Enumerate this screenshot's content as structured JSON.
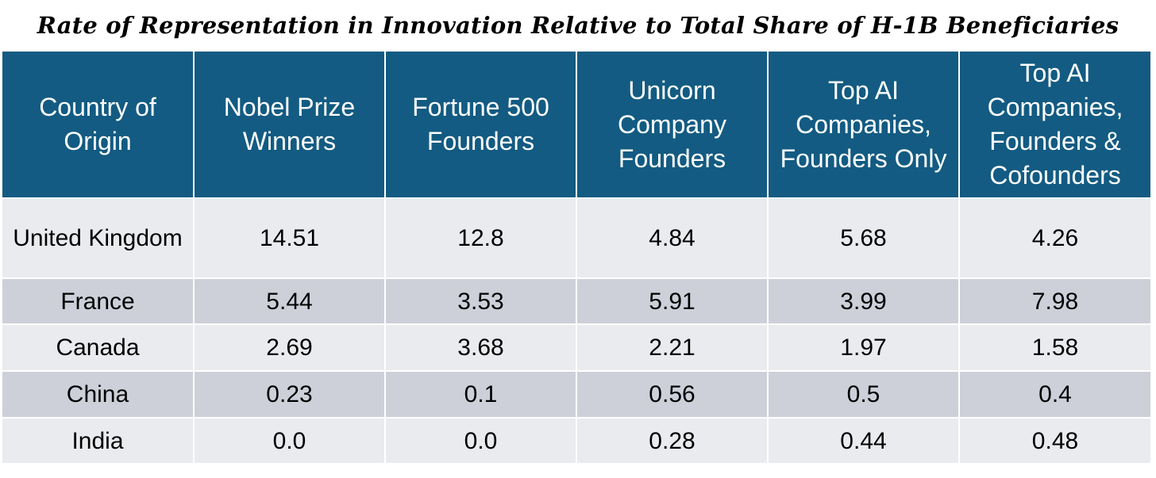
{
  "chart_data": {
    "type": "table",
    "title": "Rate of Representation in Innovation Relative to Total Share of H-1B Beneficiaries",
    "columns": [
      "Country of Origin",
      "Nobel Prize Winners",
      "Fortune 500 Founders",
      "Unicorn Company Founders",
      "Top AI Companies, Founders Only",
      "Top AI Companies, Founders & Cofounders"
    ],
    "rows": [
      [
        "United Kingdom",
        "14.51",
        "12.8",
        "4.84",
        "5.68",
        "4.26"
      ],
      [
        "France",
        "5.44",
        "3.53",
        "5.91",
        "3.99",
        "7.98"
      ],
      [
        "Canada",
        "2.69",
        "3.68",
        "2.21",
        "1.97",
        "1.58"
      ],
      [
        "China",
        "0.23",
        "0.1",
        "0.56",
        "0.5",
        "0.4"
      ],
      [
        "India",
        "0.0",
        "0.0",
        "0.28",
        "0.44",
        "0.48"
      ]
    ],
    "colors": {
      "header_background": "#135b82",
      "header_text": "#ffffff",
      "row_light": "#e9ebee",
      "row_dark": "#cdd0d9"
    }
  }
}
